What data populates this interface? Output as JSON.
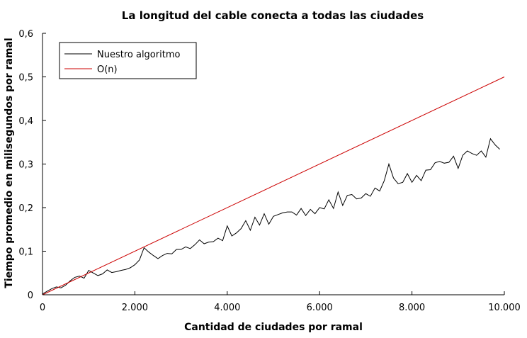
{
  "chart_data": {
    "type": "line",
    "title": "La longitud del cable conecta a todas las ciudades",
    "xlabel": "Cantidad de ciudades por ramal",
    "ylabel": "Tiempo promedio en milisegundos por ramal",
    "xlim": [
      0,
      10000
    ],
    "ylim": [
      0,
      0.6
    ],
    "x_ticks": [
      "0",
      "2.000",
      "4.000",
      "6.000",
      "8.000",
      "10.000"
    ],
    "y_ticks": [
      "0",
      "0,1",
      "0,2",
      "0,3",
      "0,4",
      "0,5",
      "0,6"
    ],
    "legend_position": "top-left",
    "grid": false,
    "series": [
      {
        "name": "Nuestro algoritmo",
        "color": "#000000",
        "x": [
          0,
          100,
          200,
          300,
          400,
          500,
          600,
          700,
          800,
          900,
          1000,
          1100,
          1200,
          1300,
          1400,
          1500,
          1600,
          1700,
          1800,
          1900,
          2000,
          2100,
          2200,
          2300,
          2400,
          2500,
          2600,
          2700,
          2800,
          2900,
          3000,
          3100,
          3200,
          3300,
          3400,
          3500,
          3600,
          3700,
          3800,
          3900,
          4000,
          4100,
          4200,
          4300,
          4400,
          4500,
          4600,
          4700,
          4800,
          4900,
          5000,
          5100,
          5200,
          5300,
          5400,
          5500,
          5600,
          5700,
          5800,
          5900,
          6000,
          6100,
          6200,
          6300,
          6400,
          6500,
          6600,
          6700,
          6800,
          6900,
          7000,
          7100,
          7200,
          7300,
          7400,
          7500,
          7600,
          7700,
          7800,
          7900,
          8000,
          8100,
          8200,
          8300,
          8400,
          8500,
          8600,
          8700,
          8800,
          8900,
          9000,
          9100,
          9200,
          9300,
          9400,
          9500,
          9600,
          9700,
          9800,
          9900
        ],
        "y": [
          0.002,
          0.008,
          0.014,
          0.018,
          0.016,
          0.022,
          0.032,
          0.04,
          0.043,
          0.038,
          0.056,
          0.05,
          0.044,
          0.048,
          0.057,
          0.051,
          0.053,
          0.056,
          0.058,
          0.062,
          0.069,
          0.08,
          0.108,
          0.098,
          0.09,
          0.083,
          0.09,
          0.095,
          0.094,
          0.104,
          0.104,
          0.11,
          0.106,
          0.115,
          0.126,
          0.117,
          0.121,
          0.122,
          0.13,
          0.124,
          0.158,
          0.135,
          0.142,
          0.152,
          0.17,
          0.148,
          0.178,
          0.16,
          0.186,
          0.162,
          0.18,
          0.184,
          0.188,
          0.19,
          0.19,
          0.183,
          0.198,
          0.182,
          0.196,
          0.186,
          0.2,
          0.197,
          0.218,
          0.198,
          0.236,
          0.205,
          0.228,
          0.23,
          0.22,
          0.222,
          0.232,
          0.226,
          0.245,
          0.238,
          0.262,
          0.3,
          0.268,
          0.255,
          0.258,
          0.278,
          0.258,
          0.274,
          0.262,
          0.286,
          0.287,
          0.303,
          0.306,
          0.302,
          0.304,
          0.318,
          0.29,
          0.32,
          0.33,
          0.324,
          0.32,
          0.33,
          0.316,
          0.358,
          0.344,
          0.334
        ]
      },
      {
        "name": "O(n)",
        "color": "#cc0000",
        "x": [
          0,
          10000
        ],
        "y": [
          0.0,
          0.5
        ]
      }
    ]
  }
}
